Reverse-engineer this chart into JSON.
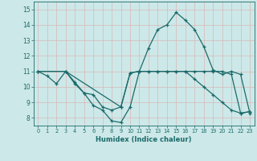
{
  "xlabel": "Humidex (Indice chaleur)",
  "xlim": [
    -0.5,
    23.5
  ],
  "ylim": [
    7.5,
    15.5
  ],
  "xticks": [
    0,
    1,
    2,
    3,
    4,
    5,
    6,
    7,
    8,
    9,
    10,
    11,
    12,
    13,
    14,
    15,
    16,
    17,
    18,
    19,
    20,
    21,
    22,
    23
  ],
  "yticks": [
    8,
    9,
    10,
    11,
    12,
    13,
    14,
    15
  ],
  "bg_color": "#cde8e8",
  "line_color": "#1a6b6b",
  "grid_color": "#b8d8d8",
  "series": [
    {
      "x": [
        0,
        1,
        2,
        3,
        4,
        5,
        6,
        7,
        8,
        9,
        10,
        11,
        12,
        13,
        14,
        15,
        16,
        17,
        18,
        19,
        20,
        21,
        22,
        23
      ],
      "y": [
        11,
        10.7,
        10.2,
        11,
        10.2,
        9.6,
        8.8,
        8.5,
        7.8,
        7.7,
        8.7,
        11,
        12.5,
        13.7,
        14.0,
        14.8,
        14.3,
        13.7,
        12.6,
        11.1,
        10.8,
        11.0,
        10.8,
        8.3
      ]
    },
    {
      "x": [
        0,
        3,
        4,
        5,
        6,
        7,
        8,
        9,
        10,
        11,
        12,
        13,
        14,
        15,
        16,
        17,
        18,
        19,
        20,
        21,
        22,
        23
      ],
      "y": [
        11,
        11,
        10.3,
        9.6,
        9.5,
        8.7,
        8.5,
        8.7,
        10.9,
        11,
        11,
        11,
        11,
        11,
        11,
        11,
        11,
        11,
        11,
        10.8,
        8.3,
        8.4
      ]
    },
    {
      "x": [
        0,
        3,
        9,
        10,
        11,
        12,
        13,
        14,
        15,
        16,
        17,
        18,
        19,
        20,
        21,
        22,
        23
      ],
      "y": [
        11,
        11,
        8.7,
        10.9,
        11,
        11,
        11,
        11,
        11,
        11,
        10.5,
        10.0,
        9.5,
        9.0,
        8.5,
        8.3,
        8.4
      ]
    }
  ]
}
